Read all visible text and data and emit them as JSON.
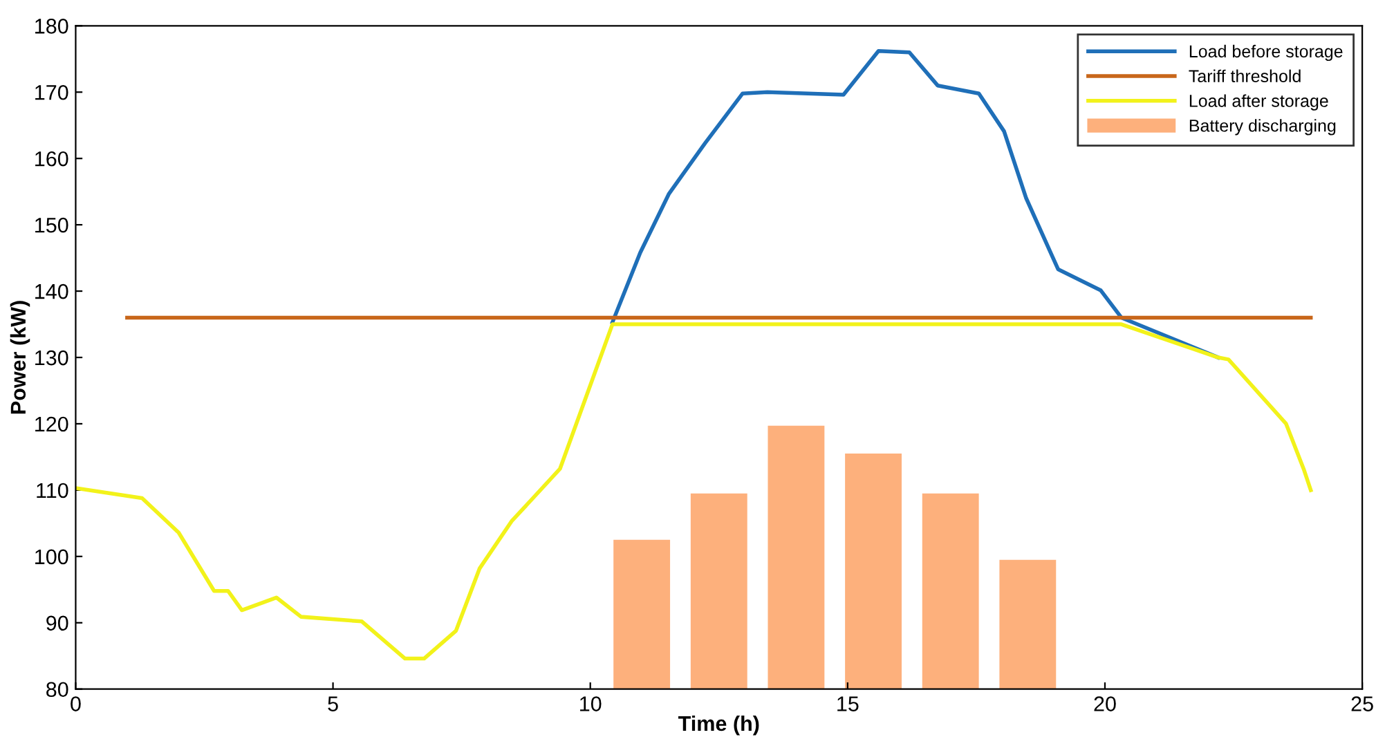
{
  "chart_data": {
    "type": "line",
    "xlabel": "Time (h)",
    "ylabel": "Power (kW)",
    "xlim": [
      0,
      25
    ],
    "xticks": [
      0,
      5,
      10,
      15,
      20,
      25
    ],
    "ylim": [
      80,
      180
    ],
    "yticks": [
      80,
      90,
      100,
      110,
      120,
      130,
      140,
      150,
      160,
      170,
      180
    ],
    "grid": false,
    "legend": "top right",
    "series": [
      {
        "name": "Load before storage",
        "color": "#1f6fb8",
        "x": [
          10.43,
          10.97,
          11.53,
          12.23,
          12.96,
          13.44,
          14.92,
          15.6,
          16.2,
          16.75,
          17.55,
          18.04,
          18.47,
          19.09,
          19.92,
          20.32,
          22.2
        ],
        "values": [
          135.3,
          145.8,
          154.7,
          162.3,
          169.8,
          170,
          169.6,
          176.2,
          176,
          171,
          169.8,
          164.1,
          154,
          143.3,
          140.1,
          136,
          130
        ]
      },
      {
        "name": "Tariff threshold",
        "color": "#c8661a",
        "x": [
          1,
          24
        ],
        "values": [
          136,
          136
        ]
      },
      {
        "name": "Load after storage",
        "color": "#f2f21a",
        "x": [
          0,
          1.29,
          2,
          2.69,
          2.96,
          3.23,
          3.9,
          4.38,
          5.56,
          6.4,
          6.77,
          7.39,
          7.85,
          8.47,
          9.41,
          10.43,
          20.32,
          22.2,
          22.4,
          23.52,
          23.87,
          24
        ],
        "values": [
          110.3,
          108.8,
          103.6,
          94.8,
          94.8,
          91.9,
          93.8,
          90.9,
          90.2,
          84.6,
          84.6,
          88.8,
          98.2,
          105.3,
          113.2,
          135,
          135,
          130,
          129.7,
          120,
          113,
          110
        ]
      },
      {
        "name": "Battery discharging",
        "type": "bar",
        "color": "#fdb07c",
        "x": [
          11,
          12.5,
          14,
          15.5,
          17,
          18.5
        ],
        "values": [
          102.5,
          109.5,
          119.7,
          115.5,
          109.5,
          99.5
        ]
      }
    ]
  }
}
